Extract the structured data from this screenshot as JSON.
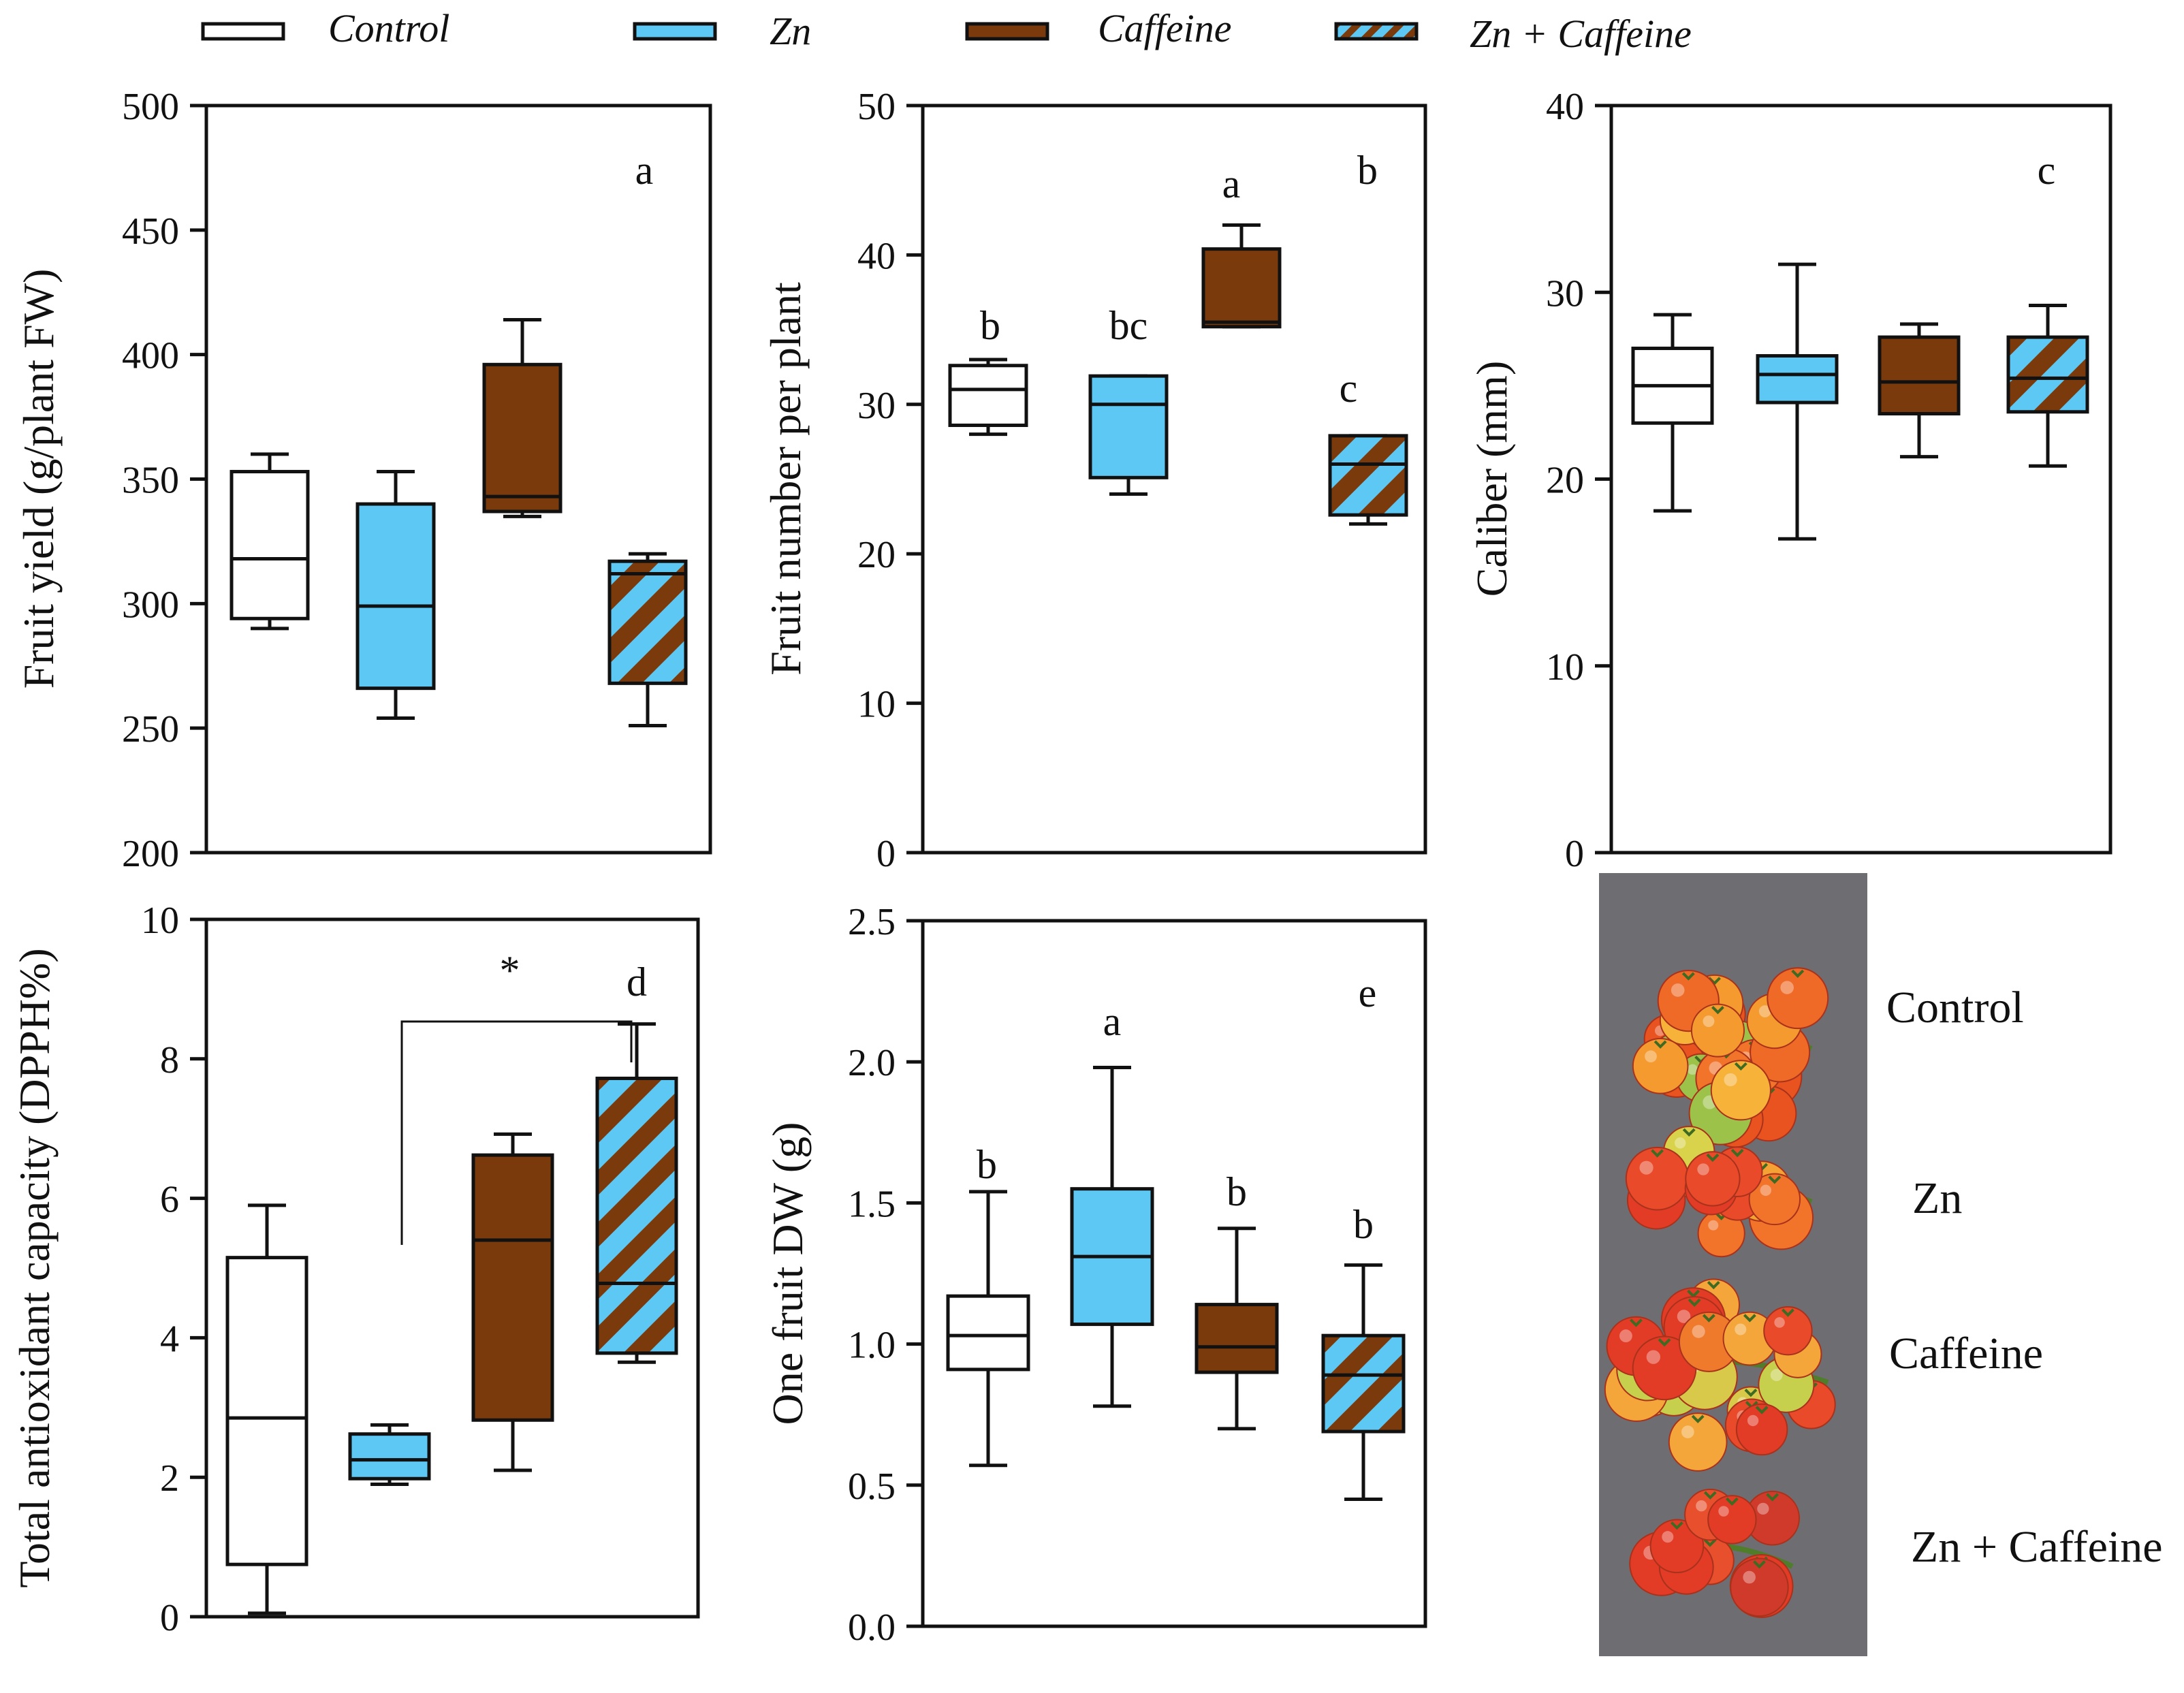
{
  "legend": {
    "position": "top",
    "entries": [
      {
        "label": "Control",
        "style": "control"
      },
      {
        "label": "Zn",
        "style": "zn"
      },
      {
        "label": "Caffeine",
        "style": "caffeine"
      },
      {
        "label": "Zn + Caffeine",
        "style": "combo"
      }
    ]
  },
  "colors": {
    "control": "#ffffff",
    "zn": "#5ec8f5",
    "caffeine": "#7a3a0c",
    "axis": "#111111",
    "photo_bg": "#6e6e72"
  },
  "chart_data": [
    {
      "panel": "a",
      "type": "boxplot",
      "ylabel": "Fruit yield (g/plant FW)",
      "ylim": [
        200,
        500
      ],
      "yticks": [
        200,
        250,
        300,
        350,
        400,
        450,
        500
      ],
      "tick_decimals": 0,
      "groups": [
        "Control",
        "Zn",
        "Caffeine",
        "Zn + Caffeine"
      ],
      "boxes": [
        {
          "group": "Control",
          "min": 290,
          "q1": 294,
          "median": 318,
          "q3": 353,
          "max": 360
        },
        {
          "group": "Zn",
          "min": 254,
          "q1": 266,
          "median": 299,
          "q3": 340,
          "max": 353
        },
        {
          "group": "Caffeine",
          "min": 335,
          "q1": 337,
          "median": 343,
          "q3": 396,
          "max": 414
        },
        {
          "group": "Zn + Caffeine",
          "min": 251,
          "q1": 268,
          "median": 312,
          "q3": 317,
          "max": 320
        }
      ],
      "letters": []
    },
    {
      "panel": "b",
      "type": "boxplot",
      "ylabel": "Fruit number per plant",
      "ylim": [
        0,
        50
      ],
      "yticks": [
        0,
        10,
        20,
        30,
        40,
        50
      ],
      "tick_decimals": 0,
      "groups": [
        "Control",
        "Zn",
        "Caffeine",
        "Zn + Caffeine"
      ],
      "boxes": [
        {
          "group": "Control",
          "min": 28,
          "q1": 28.6,
          "median": 31,
          "q3": 32.6,
          "max": 33
        },
        {
          "group": "Zn",
          "min": 24,
          "q1": 25.1,
          "median": 30,
          "q3": 31.9,
          "max": 31.9
        },
        {
          "group": "Caffeine",
          "min": 35.2,
          "q1": 35.2,
          "median": 35.5,
          "q3": 40.4,
          "max": 42
        },
        {
          "group": "Zn + Caffeine",
          "min": 22,
          "q1": 22.6,
          "median": 26,
          "q3": 27.9,
          "max": 27.9
        }
      ],
      "letters": [
        "b",
        "bc",
        "a",
        "c"
      ]
    },
    {
      "panel": "c",
      "type": "boxplot",
      "ylabel": "Caliber (mm)",
      "ylim": [
        0,
        40
      ],
      "yticks": [
        0,
        10,
        20,
        30,
        40
      ],
      "tick_decimals": 0,
      "groups": [
        "Control",
        "Zn",
        "Caffeine",
        "Zn + Caffeine"
      ],
      "boxes": [
        {
          "group": "Control",
          "min": 18.3,
          "q1": 23,
          "median": 25,
          "q3": 27,
          "max": 28.8
        },
        {
          "group": "Zn",
          "min": 16.8,
          "q1": 24.1,
          "median": 25.6,
          "q3": 26.6,
          "max": 31.5
        },
        {
          "group": "Caffeine",
          "min": 21.2,
          "q1": 23.5,
          "median": 25.2,
          "q3": 27.6,
          "max": 28.3
        },
        {
          "group": "Zn + Caffeine",
          "min": 20.7,
          "q1": 23.6,
          "median": 25.4,
          "q3": 27.6,
          "max": 29.3
        }
      ],
      "letters": []
    },
    {
      "panel": "d",
      "type": "boxplot",
      "ylabel": "Total antioxidant capacity (DPPH%)",
      "ylim": [
        0,
        10
      ],
      "yticks": [
        0,
        2,
        4,
        6,
        8,
        10
      ],
      "tick_decimals": 0,
      "groups": [
        "Control",
        "Zn",
        "Caffeine",
        "Zn + Caffeine"
      ],
      "boxes": [
        {
          "group": "Control",
          "min": 0.05,
          "q1": 0.75,
          "median": 2.85,
          "q3": 5.15,
          "max": 5.9
        },
        {
          "group": "Zn",
          "min": 1.9,
          "q1": 1.98,
          "median": 2.25,
          "q3": 2.62,
          "max": 2.75
        },
        {
          "group": "Caffeine",
          "min": 2.1,
          "q1": 2.82,
          "median": 5.4,
          "q3": 6.62,
          "max": 6.92
        },
        {
          "group": "Zn + Caffeine",
          "min": 3.65,
          "q1": 3.78,
          "median": 4.78,
          "q3": 7.72,
          "max": 8.5
        }
      ],
      "letters": [],
      "significance": {
        "label": "*",
        "from": "Zn",
        "to": "Zn + Caffeine"
      }
    },
    {
      "panel": "e",
      "type": "boxplot",
      "ylabel": "One fruit DW (g)",
      "ylim": [
        0,
        2.5
      ],
      "yticks": [
        0,
        0.5,
        1,
        1.5,
        2,
        2.5
      ],
      "tick_decimals": 1,
      "groups": [
        "Control",
        "Zn",
        "Caffeine",
        "Zn + Caffeine"
      ],
      "boxes": [
        {
          "group": "Control",
          "min": 0.57,
          "q1": 0.91,
          "median": 1.03,
          "q3": 1.17,
          "max": 1.54
        },
        {
          "group": "Zn",
          "min": 0.78,
          "q1": 1.07,
          "median": 1.31,
          "q3": 1.55,
          "max": 1.98
        },
        {
          "group": "Caffeine",
          "min": 0.7,
          "q1": 0.9,
          "median": 0.99,
          "q3": 1.14,
          "max": 1.41
        },
        {
          "group": "Zn + Caffeine",
          "min": 0.45,
          "q1": 0.69,
          "median": 0.89,
          "q3": 1.03,
          "max": 1.28
        }
      ],
      "letters": [
        "b",
        "a",
        "b",
        "b"
      ]
    }
  ],
  "photo": {
    "labels": [
      "Control",
      "Zn",
      "Caffeine",
      "Zn + Caffeine"
    ]
  }
}
